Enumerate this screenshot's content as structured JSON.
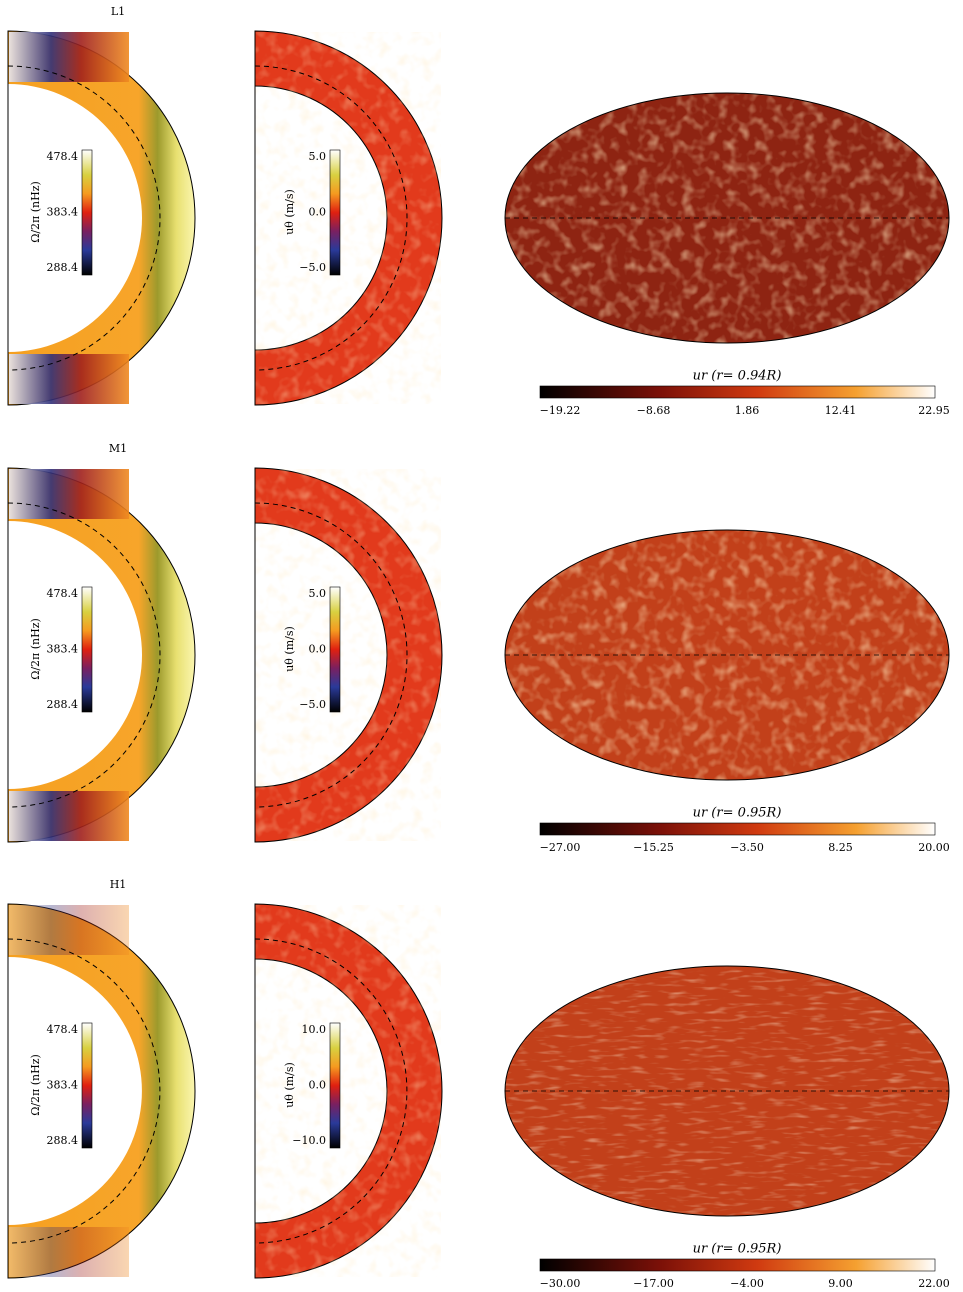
{
  "panels": [
    {
      "label": "L1",
      "omega": {
        "label": "Ω/2π (nHz)",
        "ticks": [
          "478.4",
          "383.4",
          "288.4"
        ]
      },
      "utheta": {
        "label": "uθ (m/s)",
        "ticks": [
          "5.0",
          "0.0",
          "−5.0"
        ]
      },
      "map": {
        "title": "ur (r= 0.94R)",
        "ticks": [
          "−19.22",
          "−8.68",
          "1.86",
          "12.41",
          "22.95"
        ]
      }
    },
    {
      "label": "M1",
      "omega": {
        "label": "Ω/2π (nHz)",
        "ticks": [
          "478.4",
          "383.4",
          "288.4"
        ]
      },
      "utheta": {
        "label": "uθ (m/s)",
        "ticks": [
          "5.0",
          "0.0",
          "−5.0"
        ]
      },
      "map": {
        "title": "ur (r= 0.95R)",
        "ticks": [
          "−27.00",
          "−15.25",
          "−3.50",
          "8.25",
          "20.00"
        ]
      }
    },
    {
      "label": "H1",
      "omega": {
        "label": "Ω/2π (nHz)",
        "ticks": [
          "478.4",
          "383.4",
          "288.4"
        ]
      },
      "utheta": {
        "label": "uθ (m/s)",
        "ticks": [
          "10.0",
          "0.0",
          "−10.0"
        ]
      },
      "map": {
        "title": "ur (r= 0.95R)",
        "ticks": [
          "−30.00",
          "−17.00",
          "−4.00",
          "9.00",
          "22.00"
        ]
      }
    }
  ]
}
